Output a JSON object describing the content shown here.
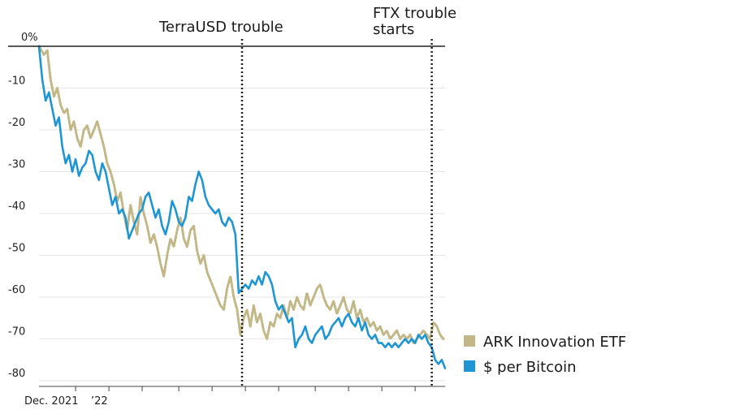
{
  "chart_data": {
    "type": "line",
    "title": "",
    "xlabel": "",
    "ylabel": "",
    "ylim": [
      -82,
      0
    ],
    "xlim": [
      0,
      12.2
    ],
    "y_ticks": [
      {
        "value": 0,
        "label": "0%"
      },
      {
        "value": -10,
        "label": "-10"
      },
      {
        "value": -20,
        "label": "-20"
      },
      {
        "value": -30,
        "label": "-30"
      },
      {
        "value": -40,
        "label": "-40"
      },
      {
        "value": -50,
        "label": "-50"
      },
      {
        "value": -60,
        "label": "-60"
      },
      {
        "value": -70,
        "label": "-70"
      },
      {
        "value": -80,
        "label": "-80"
      }
    ],
    "x_tick_positions": [
      1.1,
      2.1,
      3.1,
      4.2,
      5.2,
      6.2,
      7.2,
      8.3,
      9.3,
      10.3,
      11.3
    ],
    "x_labels": [
      {
        "value": 0.5,
        "label": "Dec. 2021"
      },
      {
        "value": 1.8,
        "label": "’22"
      }
    ],
    "annotations": [
      {
        "x": 6.1,
        "label_lines": [
          "TerraUSD trouble"
        ]
      },
      {
        "x": 11.8,
        "label_lines": [
          "FTX trouble",
          "starts"
        ]
      }
    ],
    "legend": {
      "position": "bottom-right"
    },
    "series": [
      {
        "name": "ARK Innovation ETF",
        "color": "#C2B887",
        "x": [
          0.0,
          0.15,
          0.25,
          0.35,
          0.45,
          0.55,
          0.65,
          0.75,
          0.85,
          0.95,
          1.05,
          1.15,
          1.25,
          1.35,
          1.45,
          1.55,
          1.65,
          1.75,
          1.85,
          1.95,
          2.05,
          2.15,
          2.25,
          2.35,
          2.45,
          2.55,
          2.65,
          2.75,
          2.85,
          2.95,
          3.05,
          3.15,
          3.25,
          3.35,
          3.45,
          3.55,
          3.65,
          3.75,
          3.85,
          3.95,
          4.05,
          4.15,
          4.25,
          4.35,
          4.45,
          4.55,
          4.65,
          4.75,
          4.85,
          4.95,
          5.05,
          5.15,
          5.25,
          5.35,
          5.45,
          5.55,
          5.65,
          5.75,
          5.85,
          5.95,
          6.05,
          6.15,
          6.25,
          6.35,
          6.45,
          6.55,
          6.65,
          6.75,
          6.85,
          6.95,
          7.05,
          7.15,
          7.25,
          7.35,
          7.45,
          7.55,
          7.65,
          7.75,
          7.85,
          7.95,
          8.05,
          8.15,
          8.25,
          8.35,
          8.45,
          8.55,
          8.65,
          8.75,
          8.85,
          8.95,
          9.05,
          9.15,
          9.25,
          9.35,
          9.45,
          9.55,
          9.65,
          9.75,
          9.85,
          9.95,
          10.05,
          10.15,
          10.25,
          10.35,
          10.45,
          10.55,
          10.65,
          10.75,
          10.85,
          10.95,
          11.05,
          11.15,
          11.25,
          11.35,
          11.45,
          11.55,
          11.65,
          11.75,
          11.85,
          11.95,
          12.05,
          12.15
        ],
        "values": [
          0,
          -2,
          -1,
          -8,
          -12,
          -10,
          -14,
          -16,
          -15,
          -20,
          -18,
          -22,
          -24,
          -20,
          -19,
          -22,
          -20,
          -18,
          -21,
          -24,
          -28,
          -30,
          -33,
          -37,
          -35,
          -40,
          -44,
          -38,
          -42,
          -45,
          -36,
          -40,
          -43,
          -47,
          -45,
          -48,
          -52,
          -55,
          -50,
          -46,
          -48,
          -44,
          -41,
          -46,
          -48,
          -44,
          -43,
          -49,
          -52,
          -50,
          -54,
          -56,
          -58,
          -60,
          -62,
          -63,
          -58,
          -55,
          -60,
          -63,
          -69,
          -65,
          -63,
          -67,
          -62,
          -66,
          -64,
          -68,
          -70,
          -66,
          -67,
          -64,
          -65,
          -62,
          -65,
          -61,
          -63,
          -60,
          -62,
          -63,
          -59,
          -62,
          -60,
          -58,
          -57,
          -60,
          -62,
          -63,
          -61,
          -64,
          -62,
          -60,
          -63,
          -64,
          -61,
          -65,
          -63,
          -66,
          -65,
          -67,
          -66,
          -68,
          -67,
          -69,
          -68,
          -70,
          -69,
          -68,
          -70,
          -69,
          -70,
          -69,
          -71,
          -70,
          -69,
          -68,
          -69,
          -70,
          -66,
          -67,
          -69,
          -70
        ]
      },
      {
        "name": "$ per Bitcoin",
        "color": "#1E96D4",
        "x": [
          0.0,
          0.1,
          0.2,
          0.3,
          0.4,
          0.5,
          0.6,
          0.7,
          0.8,
          0.9,
          1.0,
          1.1,
          1.2,
          1.3,
          1.4,
          1.5,
          1.6,
          1.7,
          1.8,
          1.9,
          2.0,
          2.1,
          2.2,
          2.3,
          2.4,
          2.5,
          2.6,
          2.7,
          2.8,
          2.9,
          3.0,
          3.1,
          3.2,
          3.3,
          3.4,
          3.5,
          3.6,
          3.7,
          3.8,
          3.9,
          4.0,
          4.1,
          4.2,
          4.3,
          4.4,
          4.5,
          4.6,
          4.7,
          4.8,
          4.9,
          5.0,
          5.1,
          5.2,
          5.3,
          5.4,
          5.5,
          5.6,
          5.7,
          5.8,
          5.9,
          6.0,
          6.1,
          6.2,
          6.3,
          6.4,
          6.5,
          6.6,
          6.7,
          6.8,
          6.9,
          7.0,
          7.1,
          7.2,
          7.3,
          7.4,
          7.5,
          7.6,
          7.7,
          7.8,
          7.9,
          8.0,
          8.1,
          8.2,
          8.3,
          8.4,
          8.5,
          8.6,
          8.7,
          8.8,
          8.9,
          9.0,
          9.1,
          9.2,
          9.3,
          9.4,
          9.5,
          9.6,
          9.7,
          9.8,
          9.9,
          10.0,
          10.1,
          10.2,
          10.3,
          10.4,
          10.5,
          10.6,
          10.7,
          10.8,
          10.9,
          11.0,
          11.1,
          11.2,
          11.3,
          11.4,
          11.5,
          11.6,
          11.7,
          11.8,
          11.9,
          12.0,
          12.1,
          12.2
        ],
        "values": [
          0,
          -8,
          -13,
          -11,
          -15,
          -19,
          -17,
          -24,
          -28,
          -26,
          -30,
          -27,
          -31,
          -29,
          -28,
          -25,
          -26,
          -30,
          -32,
          -28,
          -30,
          -34,
          -38,
          -36,
          -40,
          -39,
          -41,
          -46,
          -44,
          -42,
          -40,
          -39,
          -36,
          -35,
          -38,
          -41,
          -39,
          -43,
          -45,
          -42,
          -37,
          -39,
          -42,
          -43,
          -41,
          -36,
          -37,
          -33,
          -30,
          -32,
          -36,
          -38,
          -39,
          -40,
          -39,
          -42,
          -43,
          -41,
          -42,
          -45,
          -59,
          -58,
          -57,
          -58,
          -56,
          -57,
          -55,
          -57,
          -54,
          -55,
          -57,
          -61,
          -63,
          -62,
          -64,
          -66,
          -65,
          -72,
          -70,
          -69,
          -67,
          -70,
          -71,
          -69,
          -68,
          -67,
          -70,
          -69,
          -67,
          -66,
          -65,
          -67,
          -65,
          -64,
          -66,
          -67,
          -65,
          -68,
          -66,
          -69,
          -70,
          -69,
          -71,
          -71,
          -72,
          -71,
          -72,
          -71,
          -72,
          -71,
          -70,
          -71,
          -70,
          -71,
          -69,
          -70,
          -69,
          -71,
          -72,
          -75,
          -76,
          -75,
          -77
        ]
      }
    ]
  }
}
